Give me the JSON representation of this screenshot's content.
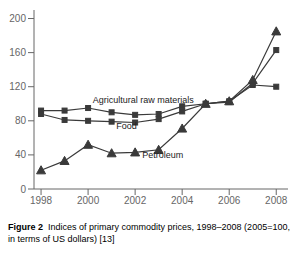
{
  "chart_data": {
    "type": "line",
    "x": [
      1998,
      1999,
      2000,
      2001,
      2002,
      2003,
      2004,
      2005,
      2006,
      2007,
      2008
    ],
    "series": [
      {
        "name": "Agricultural raw materials",
        "color": "#3a3a3a",
        "marker": "square",
        "values": [
          92,
          92,
          95,
          90,
          87,
          88,
          97,
          100,
          103,
          122,
          120
        ]
      },
      {
        "name": "Food",
        "color": "#3a3a3a",
        "marker": "square",
        "values": [
          88,
          81,
          80,
          79,
          78,
          82,
          91,
          100,
          102,
          124,
          163
        ]
      },
      {
        "name": "Petroleum",
        "color": "#3a3a3a",
        "marker": "triangle",
        "values": [
          22,
          33,
          52,
          42,
          43,
          46,
          71,
          100,
          103,
          128,
          185
        ]
      }
    ],
    "annotations": [
      {
        "text": "Agricultural raw materials",
        "x": 2000.2,
        "y": 99
      },
      {
        "text": "Food",
        "x": 2001.2,
        "y": 68
      },
      {
        "text": "Petroleum",
        "x": 2002.3,
        "y": 34
      }
    ],
    "caption": [
      "Figure 2",
      "Indices of primary commodity prices, 1998–2008 (2005=100, in terms of US dollars) [13]"
    ],
    "xlim": [
      1997.7,
      2008.5
    ],
    "xticks": [
      1998,
      2000,
      2002,
      2004,
      2006,
      2008
    ],
    "ylim": [
      0,
      210
    ],
    "yticks": [
      0,
      40,
      80,
      120,
      160,
      200
    ],
    "grid": false
  }
}
